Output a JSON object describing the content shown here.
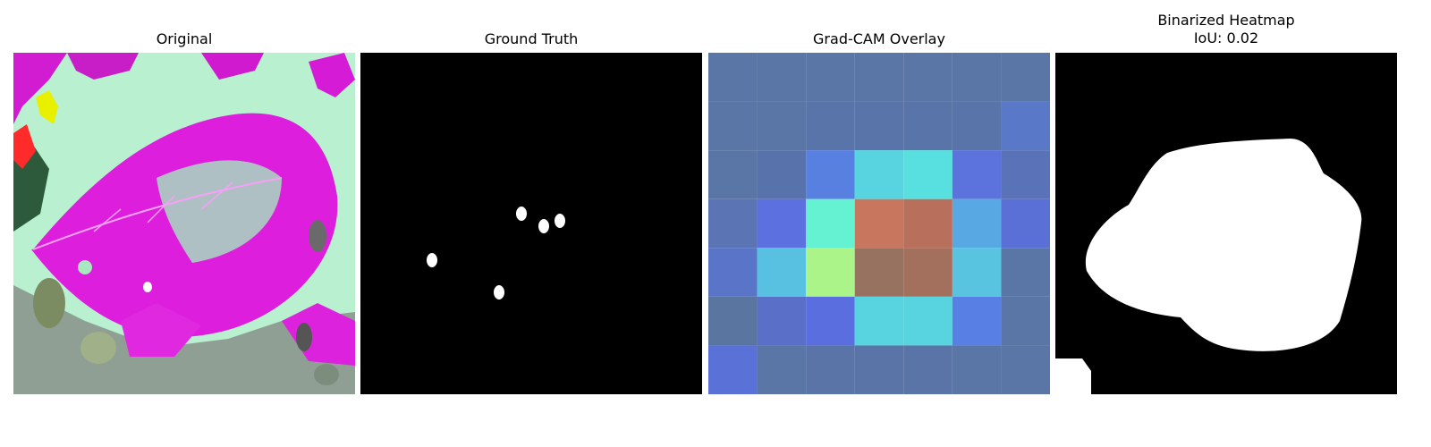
{
  "panels": [
    {
      "title": "Original",
      "subtitle": ""
    },
    {
      "title": "Ground Truth",
      "subtitle": ""
    },
    {
      "title": "Grad-CAM Overlay",
      "subtitle": ""
    },
    {
      "title": "Binarized Heatmap",
      "subtitle": "IoU: 0.02"
    }
  ],
  "colors": {
    "leaf_magenta": "#e020e0",
    "light_green": "#b6f2cf",
    "mask_white": "#ffffff",
    "mask_black": "#000000",
    "cam_base": "#5a76a6"
  }
}
